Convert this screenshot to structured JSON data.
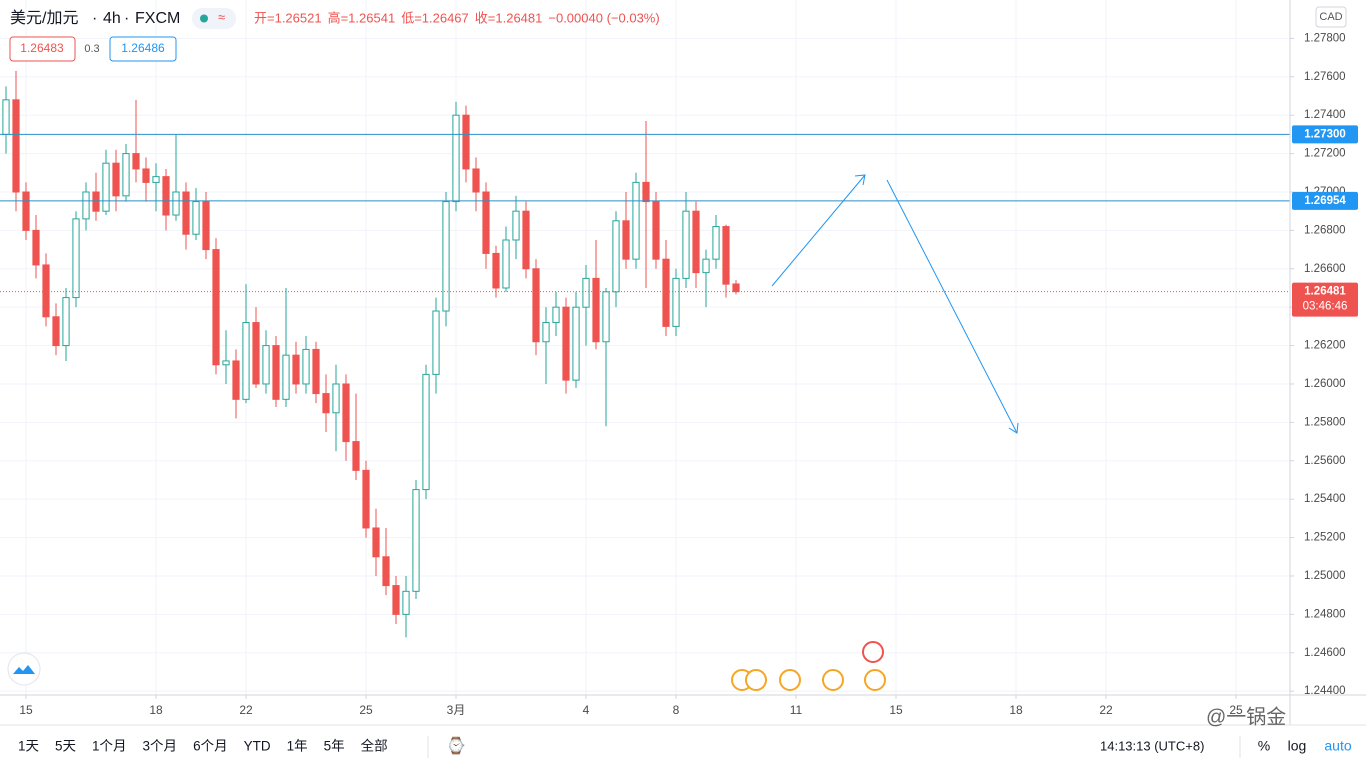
{
  "chart_data": {
    "type": "candlestick",
    "symbol": "美元/加元",
    "interval": "4h",
    "source": "FXCM",
    "ohlc": [
      "开=1.26521",
      "高=1.26541",
      "低=1.26467",
      "收=1.26481"
    ],
    "change": "−0.00040 (−0.03%)",
    "sell": "1.26483",
    "spread": "0.3",
    "buy": "1.26486",
    "currency": "CAD",
    "up_color": "#26a69a",
    "down_color": "#ef5350",
    "grid": true,
    "series": {
      "open": [
        1.273,
        1.2748,
        1.27,
        1.268,
        1.2662,
        1.2635,
        1.262,
        1.2645,
        1.2686,
        1.27,
        1.269,
        1.2715,
        1.2698,
        1.272,
        1.2712,
        1.2705,
        1.2708,
        1.2688,
        1.27,
        1.2678,
        1.2695,
        1.267,
        1.261,
        1.2612,
        1.2592,
        1.2632,
        1.26,
        1.262,
        1.2592,
        1.2615,
        1.26,
        1.2618,
        1.2595,
        1.2585,
        1.26,
        1.257,
        1.2555,
        1.2525,
        1.251,
        1.2495,
        1.248,
        1.2492,
        1.2545,
        1.2605,
        1.2638,
        1.2695,
        1.274,
        1.2712,
        1.27,
        1.2668,
        1.265,
        1.2675,
        1.269,
        1.266,
        1.2622,
        1.2632,
        1.264,
        1.2602,
        1.264,
        1.2655,
        1.2622,
        1.2648,
        1.2685,
        1.2665,
        1.2705,
        1.2695,
        1.2665,
        1.263,
        1.2655,
        1.269,
        1.2658,
        1.2665,
        1.2682,
        1.26521
      ],
      "high": [
        1.2755,
        1.2763,
        1.2705,
        1.2688,
        1.2668,
        1.2642,
        1.265,
        1.269,
        1.2705,
        1.271,
        1.2722,
        1.2722,
        1.2725,
        1.2748,
        1.2718,
        1.2715,
        1.2712,
        1.273,
        1.2705,
        1.2702,
        1.27,
        1.2676,
        1.2628,
        1.2618,
        1.2652,
        1.264,
        1.2628,
        1.2625,
        1.265,
        1.2622,
        1.2625,
        1.2622,
        1.2605,
        1.261,
        1.2605,
        1.2595,
        1.256,
        1.2535,
        1.2525,
        1.25,
        1.25,
        1.255,
        1.261,
        1.2645,
        1.27,
        1.2747,
        1.2745,
        1.2718,
        1.2705,
        1.2672,
        1.2682,
        1.2698,
        1.2695,
        1.2665,
        1.264,
        1.2648,
        1.2645,
        1.2648,
        1.2662,
        1.2675,
        1.265,
        1.269,
        1.27,
        1.271,
        1.2737,
        1.27,
        1.2675,
        1.266,
        1.27,
        1.2695,
        1.267,
        1.2688,
        1.2683,
        1.26541
      ],
      "low": [
        1.272,
        1.269,
        1.2675,
        1.2655,
        1.263,
        1.2615,
        1.2612,
        1.264,
        1.268,
        1.2685,
        1.2688,
        1.269,
        1.2695,
        1.2705,
        1.2695,
        1.269,
        1.268,
        1.2685,
        1.267,
        1.2675,
        1.2665,
        1.2605,
        1.26,
        1.2582,
        1.259,
        1.2598,
        1.2595,
        1.2588,
        1.2588,
        1.2595,
        1.2595,
        1.259,
        1.2575,
        1.2565,
        1.256,
        1.255,
        1.252,
        1.25,
        1.249,
        1.2475,
        1.2468,
        1.2488,
        1.254,
        1.2595,
        1.263,
        1.269,
        1.2705,
        1.269,
        1.266,
        1.2645,
        1.2648,
        1.2665,
        1.2655,
        1.2615,
        1.26,
        1.2625,
        1.2595,
        1.2598,
        1.262,
        1.2618,
        1.2578,
        1.264,
        1.266,
        1.266,
        1.265,
        1.266,
        1.2625,
        1.2625,
        1.265,
        1.265,
        1.264,
        1.266,
        1.2645,
        1.26467
      ],
      "close": [
        1.2748,
        1.27,
        1.268,
        1.2662,
        1.2635,
        1.262,
        1.2645,
        1.2686,
        1.27,
        1.269,
        1.2715,
        1.2698,
        1.272,
        1.2712,
        1.2705,
        1.2708,
        1.2688,
        1.27,
        1.2678,
        1.2695,
        1.267,
        1.261,
        1.2612,
        1.2592,
        1.2632,
        1.26,
        1.262,
        1.2592,
        1.2615,
        1.26,
        1.2618,
        1.2595,
        1.2585,
        1.26,
        1.257,
        1.2555,
        1.2525,
        1.251,
        1.2495,
        1.248,
        1.2492,
        1.2545,
        1.2605,
        1.2638,
        1.2695,
        1.274,
        1.2712,
        1.27,
        1.2668,
        1.265,
        1.2675,
        1.269,
        1.266,
        1.2622,
        1.2632,
        1.264,
        1.2602,
        1.264,
        1.2655,
        1.2622,
        1.2648,
        1.2685,
        1.2665,
        1.2705,
        1.2695,
        1.2665,
        1.263,
        1.2655,
        1.269,
        1.2658,
        1.2665,
        1.2682,
        1.2652,
        1.26481
      ]
    },
    "xlim": [
      -0.6,
      128.4
    ],
    "xticks": [
      {
        "value": 2,
        "label": "15"
      },
      {
        "value": 15,
        "label": "18"
      },
      {
        "value": 24,
        "label": "22"
      },
      {
        "value": 36,
        "label": "25"
      },
      {
        "value": 45,
        "label": "3月"
      },
      {
        "value": 58,
        "label": "4"
      },
      {
        "value": 67,
        "label": "8"
      },
      {
        "value": 79,
        "label": "11"
      },
      {
        "value": 89,
        "label": "15"
      },
      {
        "value": 101,
        "label": "18"
      },
      {
        "value": 110,
        "label": "22"
      },
      {
        "value": 123,
        "label": "25"
      }
    ],
    "ylim": [
      1.2438,
      1.28
    ],
    "yticks": [
      {
        "value": 1.244,
        "label": "1.24400"
      },
      {
        "value": 1.246,
        "label": "1.24600"
      },
      {
        "value": 1.248,
        "label": "1.24800"
      },
      {
        "value": 1.25,
        "label": "1.25000"
      },
      {
        "value": 1.252,
        "label": "1.25200"
      },
      {
        "value": 1.254,
        "label": "1.25400"
      },
      {
        "value": 1.256,
        "label": "1.25600"
      },
      {
        "value": 1.258,
        "label": "1.25800"
      },
      {
        "value": 1.26,
        "label": "1.26000"
      },
      {
        "value": 1.262,
        "label": "1.26200"
      },
      {
        "value": 1.264,
        "label": "1.26400"
      },
      {
        "value": 1.266,
        "label": "1.26600"
      },
      {
        "value": 1.268,
        "label": "1.26800"
      },
      {
        "value": 1.27,
        "label": "1.27000"
      },
      {
        "value": 1.272,
        "label": "1.27200"
      },
      {
        "value": 1.274,
        "label": "1.27400"
      },
      {
        "value": 1.276,
        "label": "1.27600"
      },
      {
        "value": 1.278,
        "label": "1.27800"
      }
    ],
    "hlines": [
      {
        "value": 1.273,
        "label": "1.27300"
      },
      {
        "value": 1.26954,
        "label": "1.26954"
      }
    ],
    "last_price": {
      "value": 1.26481,
      "label": "1.26481"
    },
    "countdown": "03:46:46",
    "ranges": [
      "1天",
      "5天",
      "1个月",
      "3个月",
      "6个月",
      "YTD",
      "1年",
      "5年",
      "全部"
    ],
    "clock": "14:13:13 (UTC+8)",
    "scale_modes": [
      "%",
      "log",
      "auto"
    ],
    "watermark": "@一锅金"
  }
}
